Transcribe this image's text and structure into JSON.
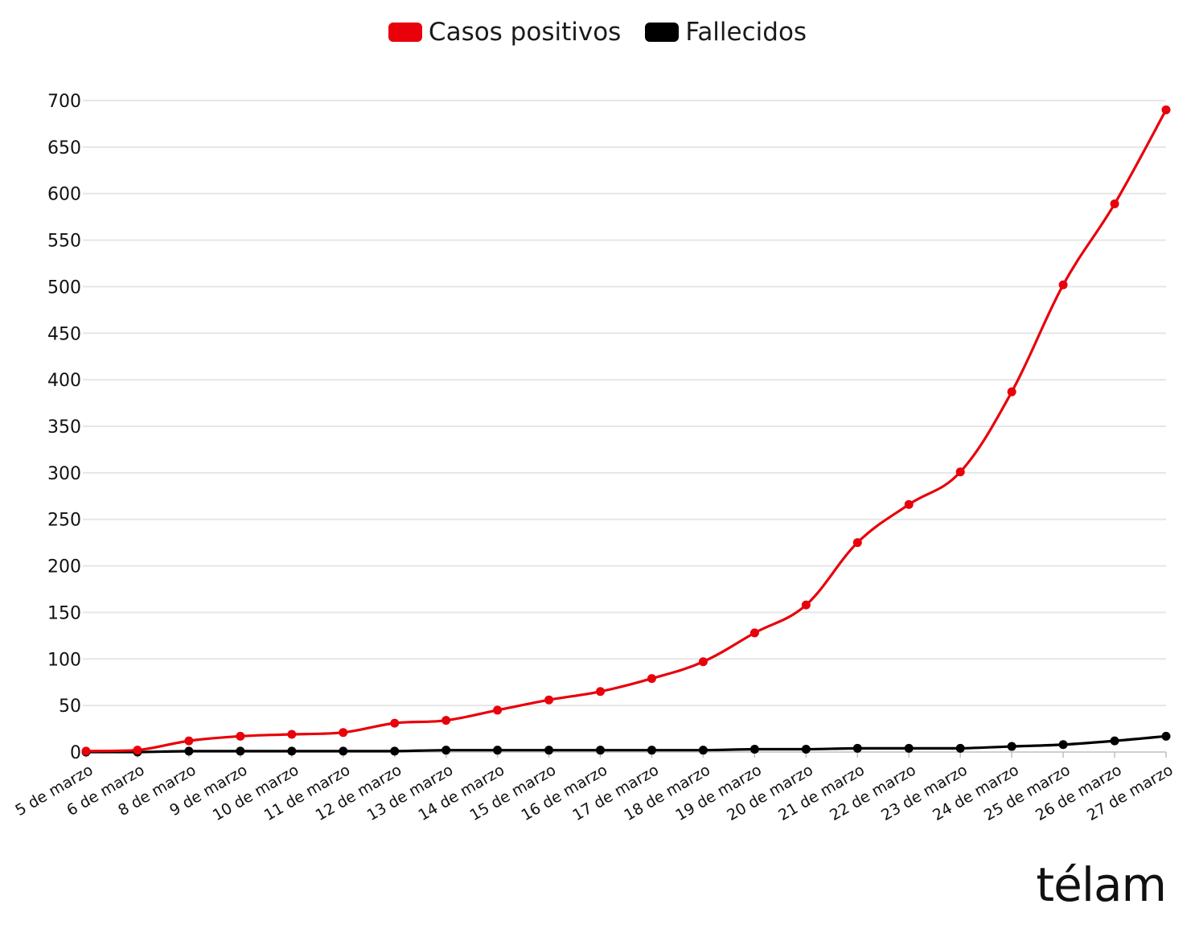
{
  "chart_data": {
    "type": "line",
    "categories": [
      "5 de marzo",
      "6 de marzo",
      "8 de marzo",
      "9 de marzo",
      "10 de marzo",
      "11 de marzo",
      "12 de marzo",
      "13 de marzo",
      "14 de marzo",
      "15 de marzo",
      "16 de marzo",
      "17 de marzo",
      "18 de marzo",
      "19 de marzo",
      "20 de marzo",
      "21 de marzo",
      "22 de marzo",
      "23 de marzo",
      "24 de marzo",
      "25 de marzo",
      "26 de marzo",
      "27 de marzo"
    ],
    "series": [
      {
        "name": "Casos positivos",
        "color": "#e8000b",
        "values": [
          1,
          2,
          12,
          17,
          19,
          21,
          31,
          34,
          45,
          56,
          65,
          79,
          97,
          128,
          158,
          225,
          266,
          301,
          387,
          502,
          589,
          690
        ]
      },
      {
        "name": "Fallecidos",
        "color": "#000000",
        "values": [
          0,
          0,
          1,
          1,
          1,
          1,
          1,
          2,
          2,
          2,
          2,
          2,
          2,
          3,
          3,
          4,
          4,
          4,
          6,
          8,
          12,
          17
        ]
      }
    ],
    "ylim": [
      0,
      700
    ],
    "yticks": [
      0,
      50,
      100,
      150,
      200,
      250,
      300,
      350,
      400,
      450,
      500,
      550,
      600,
      650,
      700
    ],
    "legend_position": "top-center",
    "grid": true
  },
  "brand": {
    "logo_text": "télam"
  }
}
